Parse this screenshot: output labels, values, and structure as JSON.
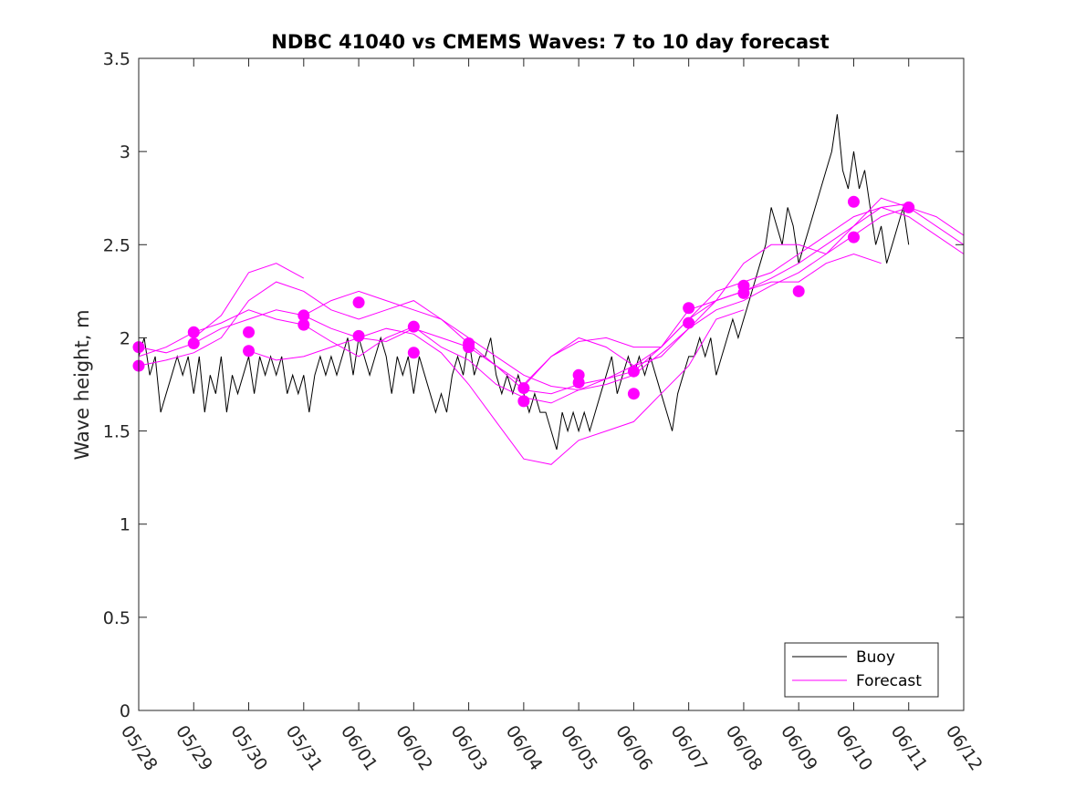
{
  "chart_data": {
    "type": "line",
    "title": "NDBC 41040 vs CMEMS Waves: 7 to 10 day forecast",
    "xlabel": "",
    "ylabel": "Wave height, m",
    "x_ticks": [
      "05/28",
      "05/29",
      "05/30",
      "05/31",
      "06/01",
      "06/02",
      "06/03",
      "06/04",
      "06/05",
      "06/06",
      "06/07",
      "06/08",
      "06/09",
      "06/10",
      "06/11",
      "06/12"
    ],
    "xlim_days": [
      0,
      15
    ],
    "ylim": [
      0,
      3.5
    ],
    "y_ticks": [
      0,
      0.5,
      1,
      1.5,
      2,
      2.5,
      3,
      3.5
    ],
    "y_tick_labels": [
      "0",
      "0.5",
      "1",
      "1.5",
      "2",
      "2.5",
      "3",
      "3.5"
    ],
    "grid": false,
    "legend_position": "bottom-right",
    "colors": {
      "buoy": "#000000",
      "forecast": "#ff00ff",
      "axis": "#262626"
    },
    "series": [
      {
        "name": "Buoy",
        "color": "#000000",
        "x": [
          0,
          0.1,
          0.2,
          0.3,
          0.4,
          0.5,
          0.6,
          0.7,
          0.8,
          0.9,
          1.0,
          1.1,
          1.2,
          1.3,
          1.4,
          1.5,
          1.6,
          1.7,
          1.8,
          1.9,
          2.0,
          2.1,
          2.2,
          2.3,
          2.4,
          2.5,
          2.6,
          2.7,
          2.8,
          2.9,
          3.0,
          3.1,
          3.2,
          3.3,
          3.4,
          3.5,
          3.6,
          3.7,
          3.8,
          3.9,
          4.0,
          4.1,
          4.2,
          4.3,
          4.4,
          4.5,
          4.6,
          4.7,
          4.8,
          4.9,
          5.0,
          5.1,
          5.2,
          5.3,
          5.4,
          5.5,
          5.6,
          5.7,
          5.8,
          5.9,
          6.0,
          6.1,
          6.2,
          6.3,
          6.4,
          6.5,
          6.6,
          6.7,
          6.8,
          6.9,
          7.0,
          7.1,
          7.2,
          7.3,
          7.4,
          7.5,
          7.6,
          7.7,
          7.8,
          7.9,
          8.0,
          8.1,
          8.2,
          8.3,
          8.4,
          8.5,
          8.6,
          8.7,
          8.8,
          8.9,
          9.0,
          9.1,
          9.2,
          9.3,
          9.4,
          9.5,
          9.6,
          9.7,
          9.8,
          9.9,
          10.0,
          10.1,
          10.2,
          10.3,
          10.4,
          10.5,
          10.6,
          10.7,
          10.8,
          10.9,
          11.0,
          11.1,
          11.2,
          11.3,
          11.4,
          11.5,
          11.6,
          11.7,
          11.8,
          11.9,
          12.0,
          12.1,
          12.2,
          12.3,
          12.4,
          12.5,
          12.6,
          12.7,
          12.8,
          12.9,
          13.0,
          13.1,
          13.2,
          13.3,
          13.4,
          13.5,
          13.6,
          13.7,
          13.8,
          13.9,
          14.0
        ],
        "values": [
          1.9,
          2.0,
          1.8,
          1.9,
          1.6,
          1.7,
          1.8,
          1.9,
          1.8,
          1.9,
          1.7,
          1.9,
          1.6,
          1.8,
          1.7,
          1.9,
          1.6,
          1.8,
          1.7,
          1.8,
          1.9,
          1.7,
          1.9,
          1.8,
          1.9,
          1.8,
          1.9,
          1.7,
          1.8,
          1.7,
          1.8,
          1.6,
          1.8,
          1.9,
          1.8,
          1.9,
          1.8,
          1.9,
          2.0,
          1.8,
          2.0,
          1.9,
          1.8,
          1.9,
          2.0,
          1.9,
          1.7,
          1.9,
          1.8,
          1.9,
          1.7,
          1.9,
          1.8,
          1.7,
          1.6,
          1.7,
          1.6,
          1.8,
          1.9,
          1.8,
          2.0,
          1.8,
          1.9,
          1.9,
          2.0,
          1.8,
          1.7,
          1.8,
          1.7,
          1.8,
          1.7,
          1.6,
          1.7,
          1.6,
          1.6,
          1.5,
          1.4,
          1.6,
          1.5,
          1.6,
          1.5,
          1.6,
          1.5,
          1.6,
          1.7,
          1.8,
          1.9,
          1.7,
          1.8,
          1.9,
          1.8,
          1.9,
          1.8,
          1.9,
          1.8,
          1.7,
          1.6,
          1.5,
          1.7,
          1.8,
          1.9,
          1.9,
          2.0,
          1.9,
          2.0,
          1.8,
          1.9,
          2.0,
          2.1,
          2.0,
          2.1,
          2.2,
          2.3,
          2.4,
          2.5,
          2.7,
          2.6,
          2.5,
          2.7,
          2.6,
          2.4,
          2.5,
          2.6,
          2.7,
          2.8,
          2.9,
          3.0,
          3.2,
          2.9,
          2.8,
          3.0,
          2.8,
          2.9,
          2.7,
          2.5,
          2.6,
          2.4,
          2.5,
          2.6,
          2.7,
          2.5
        ]
      },
      {
        "name": "Forecast",
        "color": "#ff00ff",
        "x": [
          0,
          0.5,
          1,
          1.5,
          2,
          2.5,
          3,
          3.5,
          4,
          4.5,
          5,
          5.5,
          6,
          6.5,
          7,
          7.5,
          8,
          8.5,
          9,
          9.5,
          10,
          10.5,
          11,
          11.5,
          12,
          12.5,
          13,
          13.5,
          14,
          14.5,
          15
        ],
        "values": [
          1.95,
          1.92,
          1.97,
          2.05,
          2.1,
          2.15,
          2.12,
          2.05,
          2.0,
          1.98,
          2.05,
          2.0,
          1.95,
          1.85,
          1.72,
          1.7,
          1.75,
          1.78,
          1.82,
          1.95,
          2.1,
          2.25,
          2.3,
          2.35,
          2.45,
          2.55,
          2.65,
          2.7,
          2.65,
          2.55,
          2.45
        ]
      },
      {
        "name": "",
        "color": "#ff00ff",
        "x": [
          0,
          0.5,
          1,
          1.5,
          2,
          2.5,
          3,
          3.5,
          4,
          4.5,
          5,
          5.5,
          6,
          6.5,
          7,
          7.5,
          8,
          8.5,
          9,
          9.5,
          10,
          10.5,
          11,
          11.5,
          12,
          12.5,
          13,
          13.5,
          14,
          14.5,
          15
        ],
        "values": [
          1.85,
          1.88,
          1.92,
          2.0,
          2.2,
          2.3,
          2.25,
          2.15,
          2.1,
          2.15,
          2.2,
          2.1,
          2.0,
          1.9,
          1.8,
          1.74,
          1.72,
          1.78,
          1.85,
          1.95,
          2.15,
          2.2,
          2.25,
          2.32,
          2.4,
          2.5,
          2.6,
          2.75,
          2.7,
          2.6,
          2.5
        ]
      },
      {
        "name": "",
        "color": "#ff00ff",
        "x": [
          0,
          0.5,
          1,
          1.5,
          2,
          2.5,
          3,
          3.5,
          4,
          4.5,
          5,
          5.5,
          6,
          6.5,
          7,
          7.5,
          8,
          8.5,
          9,
          9.5,
          10,
          10.5,
          11,
          11.5,
          12,
          12.5,
          13,
          13.5,
          14,
          14.5,
          15
        ],
        "values": [
          1.9,
          1.95,
          2.03,
          2.08,
          2.15,
          2.1,
          2.07,
          1.98,
          1.9,
          2.0,
          2.06,
          1.95,
          1.88,
          1.75,
          1.68,
          1.65,
          1.72,
          1.75,
          1.8,
          1.92,
          2.05,
          2.15,
          2.2,
          2.28,
          2.35,
          2.45,
          2.55,
          2.65,
          2.7,
          2.65,
          2.55
        ]
      },
      {
        "name": "",
        "color": "#ff00ff",
        "x": [
          1,
          1.5,
          2,
          2.5,
          3
        ],
        "values": [
          2.0,
          2.12,
          2.35,
          2.4,
          2.32
        ]
      },
      {
        "name": "",
        "color": "#ff00ff",
        "x": [
          2,
          2.5,
          3,
          3.5,
          4,
          4.5,
          5,
          5.5,
          6,
          6.5,
          7,
          7.5,
          8,
          8.5,
          9,
          9.5,
          10,
          10.5,
          11
        ],
        "values": [
          1.93,
          1.88,
          1.9,
          1.95,
          2.0,
          2.05,
          2.02,
          1.92,
          1.75,
          1.55,
          1.35,
          1.32,
          1.45,
          1.5,
          1.55,
          1.7,
          1.85,
          2.1,
          2.15
        ]
      },
      {
        "name": "",
        "color": "#ff00ff",
        "x": [
          3,
          3.5,
          4,
          4.5,
          5,
          5.5,
          6,
          6.5,
          7,
          7.5,
          8,
          8.5,
          9,
          9.5,
          10,
          10.5,
          11,
          11.5,
          12,
          12.5,
          13,
          13.5,
          14
        ],
        "values": [
          2.12,
          2.2,
          2.25,
          2.2,
          2.15,
          2.1,
          1.97,
          1.85,
          1.75,
          1.9,
          1.98,
          2.0,
          1.95,
          1.95,
          2.1,
          2.2,
          2.4,
          2.5,
          2.5,
          2.45,
          2.6,
          2.7,
          2.72
        ]
      },
      {
        "name": "",
        "color": "#ff00ff",
        "x": [
          7,
          7.5,
          8,
          8.5,
          9,
          9.5,
          10,
          10.5,
          11,
          11.5,
          12,
          12.5,
          13,
          13.5
        ],
        "values": [
          1.74,
          1.9,
          2.0,
          1.95,
          1.85,
          1.9,
          2.05,
          2.2,
          2.25,
          2.3,
          2.3,
          2.4,
          2.45,
          2.4
        ]
      }
    ],
    "markers": {
      "color": "#ff00ff",
      "x": [
        0,
        0,
        1,
        1,
        2,
        2,
        3,
        3,
        4,
        4,
        5,
        5,
        6,
        6,
        7,
        7,
        8,
        8,
        9,
        9,
        10,
        10,
        11,
        11,
        12,
        13,
        13,
        14
      ],
      "values": [
        1.95,
        1.85,
        2.03,
        1.97,
        2.03,
        1.93,
        2.12,
        2.07,
        2.19,
        2.01,
        2.06,
        1.92,
        1.97,
        1.95,
        1.73,
        1.66,
        1.8,
        1.76,
        1.82,
        1.7,
        2.16,
        2.08,
        2.28,
        2.24,
        2.25,
        2.73,
        2.54,
        2.7
      ]
    },
    "legend": [
      "Buoy",
      "Forecast"
    ]
  }
}
